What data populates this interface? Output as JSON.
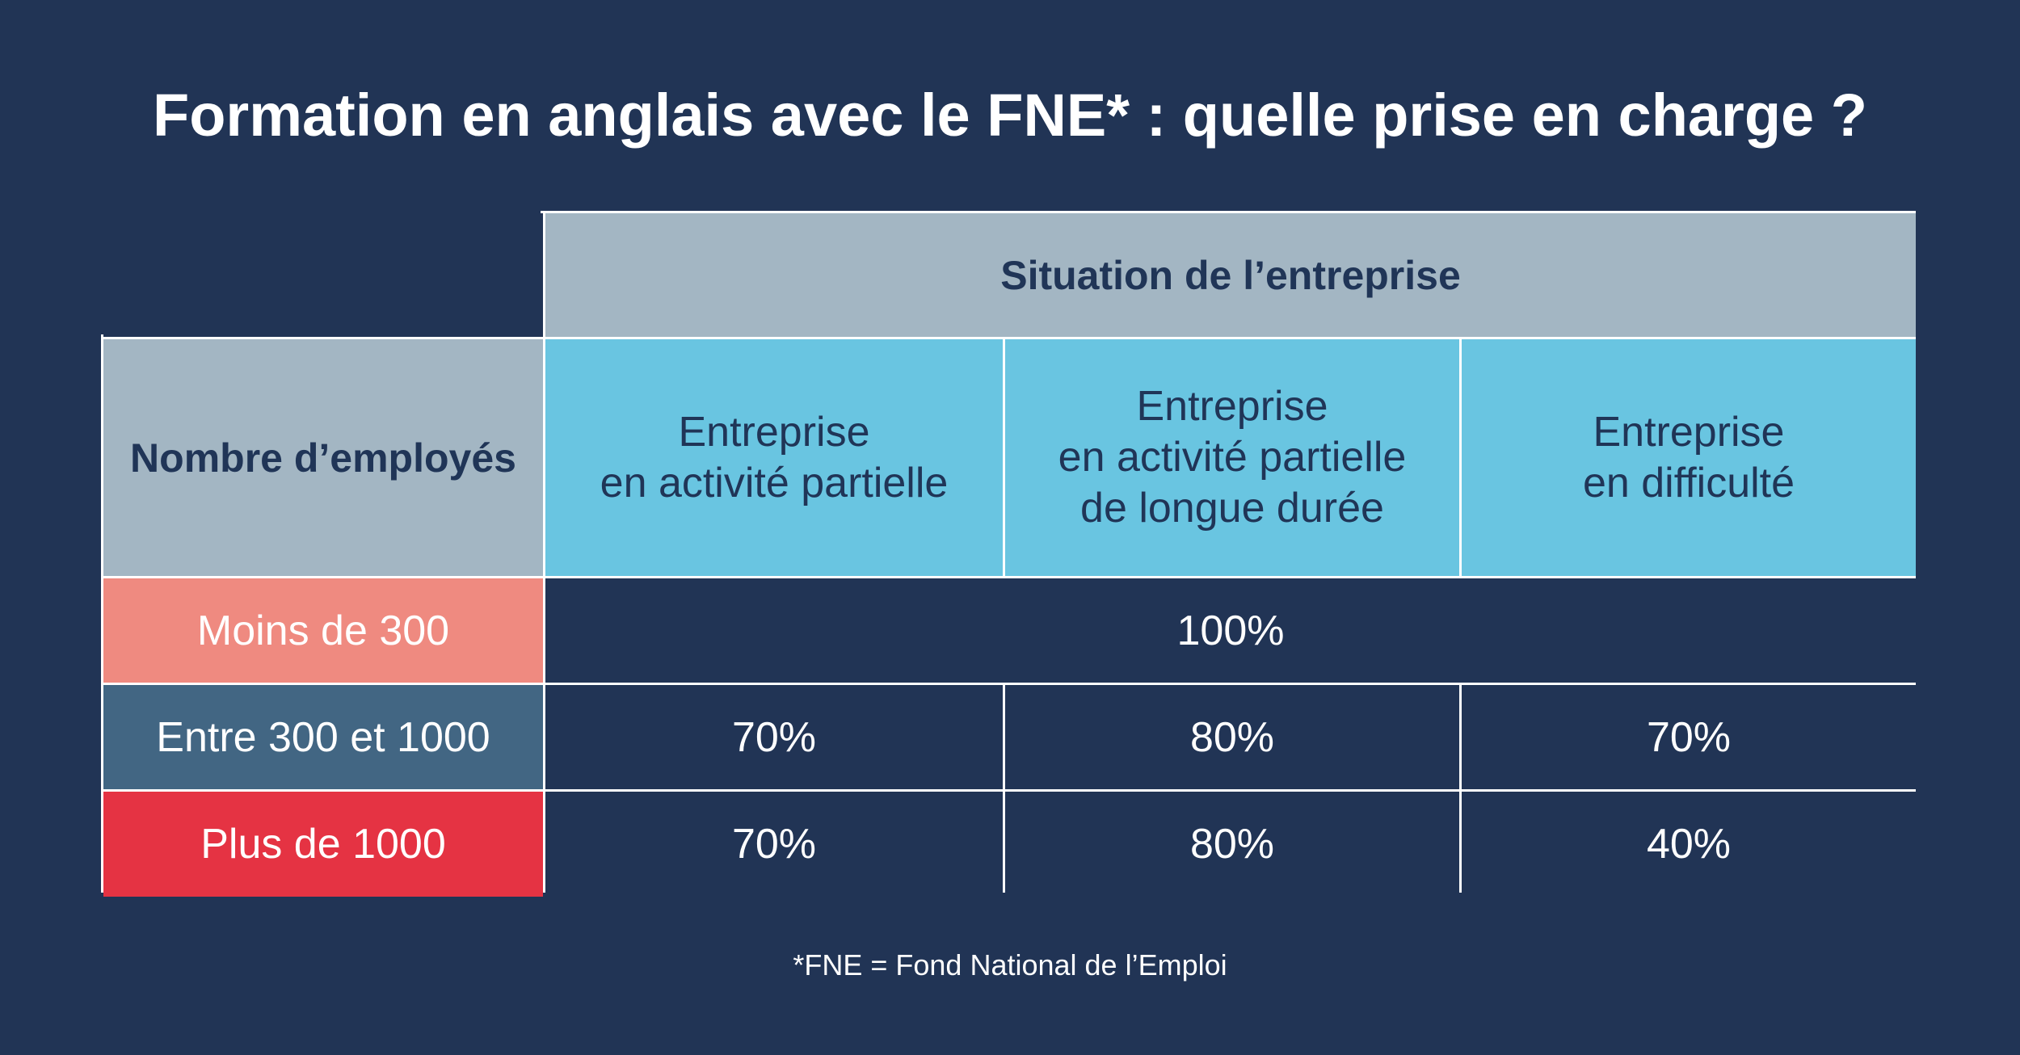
{
  "title": "Formation en anglais avec le FNE* : quelle prise en charge ?",
  "chart_data": {
    "type": "table",
    "column_group_header": "Situation de l’entreprise",
    "row_header": "Nombre d’employés",
    "columns": [
      "Entreprise\nen activité partielle",
      "Entreprise\nen activité partielle\nde longue durée",
      "Entreprise\nen difficulté"
    ],
    "rows": [
      {
        "label": "Moins de 300",
        "values": [
          "100%",
          "100%",
          "100%"
        ],
        "merged_value": "100%",
        "color": "#ef8a80"
      },
      {
        "label": "Entre 300 et 1000",
        "values": [
          "70%",
          "80%",
          "70%"
        ],
        "color": "#426683"
      },
      {
        "label": "Plus de 1000",
        "values": [
          "70%",
          "80%",
          "40%"
        ],
        "color": "#e53343"
      }
    ]
  },
  "footnote": "*FNE = Fond National de l’Emploi",
  "colors": {
    "background": "#213455",
    "header_gray": "#a3b6c3",
    "header_blue": "#69c5e1",
    "grid_lines": "#ffffff"
  }
}
